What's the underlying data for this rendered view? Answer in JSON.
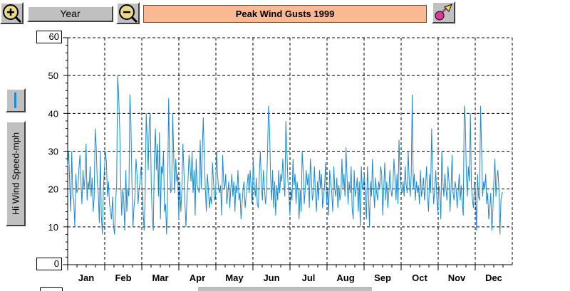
{
  "toolbar": {
    "zoom_in_icon": "zoom-in-magnifier-icon",
    "period_label": "Year",
    "zoom_out_icon": "zoom-out-magnifier-icon",
    "title": "Peak Wind Gusts 1999",
    "tool_icon": "paint-tool-icon"
  },
  "side": {
    "series_icon": "line-series-icon",
    "axis_button_label": "Hi Wind Speed-mph"
  },
  "colors": {
    "line": "#1a8ad6",
    "title_bg": "#f9b992",
    "button_face": "#c0c0c0"
  },
  "chart_data": {
    "type": "line",
    "title": "Peak Wind Gusts 1999",
    "ylabel": "Hi Wind Speed-mph",
    "ylim": [
      0,
      60
    ],
    "y_ticks": [
      "60",
      "50",
      "40",
      "30",
      "20",
      "10",
      "0"
    ],
    "y_max_box": "60",
    "y_min_box": "0",
    "grid": true,
    "months": [
      "Jan",
      "Feb",
      "Mar",
      "Apr",
      "May",
      "Jun",
      "Jul",
      "Aug",
      "Sep",
      "Oct",
      "Nov",
      "Dec"
    ],
    "series": [
      {
        "values": [
          26,
          30,
          21,
          14,
          30,
          18,
          17,
          10,
          24,
          19,
          20,
          25,
          29,
          22,
          16,
          25,
          20,
          23,
          32,
          17,
          22,
          20,
          26,
          18,
          23,
          14,
          18,
          36,
          31,
          22,
          19,
          11,
          30,
          13,
          8,
          20,
          25,
          30,
          27,
          18,
          22,
          16,
          14,
          12,
          18,
          10,
          8,
          17,
          21,
          50,
          45,
          36,
          22,
          13,
          20,
          17,
          9,
          25,
          14,
          20,
          18,
          45,
          38,
          22,
          10,
          15,
          18,
          28,
          24,
          16,
          20,
          22,
          26,
          20,
          14,
          9,
          18,
          40,
          33,
          25,
          38,
          40,
          21,
          12,
          9,
          28,
          36,
          25,
          32,
          18,
          35,
          12,
          26,
          24,
          30,
          14,
          16,
          8,
          18,
          44,
          27,
          19,
          20,
          40,
          29,
          19,
          28,
          22,
          24,
          12,
          22,
          14,
          20,
          32,
          25,
          16,
          10,
          18,
          22,
          29,
          26,
          22,
          30,
          19,
          25,
          13,
          28,
          21,
          20,
          19,
          33,
          20,
          30,
          39,
          28,
          20,
          14,
          24,
          20,
          15,
          18,
          16,
          27,
          22,
          17,
          18,
          30,
          24,
          20,
          19,
          21,
          13,
          29,
          22,
          20,
          24,
          16,
          19,
          22,
          15,
          20,
          24,
          18,
          22,
          14,
          21,
          19,
          25,
          17,
          19,
          12,
          16,
          20,
          22,
          15,
          18,
          21,
          24,
          19,
          25,
          20,
          16,
          28,
          21,
          18,
          23,
          16,
          15,
          24,
          30,
          21,
          17,
          25,
          20,
          16,
          19,
          30,
          42,
          36,
          23,
          17,
          25,
          15,
          22,
          13,
          21,
          17,
          25,
          19,
          24,
          22,
          28,
          22,
          18,
          38,
          30,
          22,
          19,
          13,
          20,
          17,
          28,
          21,
          24,
          16,
          22,
          19,
          12,
          20,
          14,
          30,
          25,
          16,
          20,
          25,
          21,
          24,
          15,
          28,
          23,
          17,
          19,
          26,
          19,
          14,
          22,
          17,
          25,
          20,
          24,
          15,
          18,
          21,
          27,
          16,
          20,
          13,
          25,
          22,
          19,
          14,
          26,
          20,
          18,
          23,
          15,
          21,
          17,
          19,
          28,
          20,
          24,
          18,
          31,
          23,
          16,
          22,
          19,
          26,
          15,
          12,
          25,
          18,
          20,
          23,
          14,
          22,
          10,
          26,
          20,
          21,
          24,
          17,
          12,
          26,
          19,
          10,
          22,
          18,
          28,
          20,
          15,
          23,
          19,
          17,
          22,
          20,
          26,
          24,
          13,
          20,
          27,
          17,
          22,
          15,
          19,
          25,
          20,
          18,
          21,
          28,
          23,
          17,
          24,
          16,
          33,
          24,
          20,
          19,
          22,
          18,
          26,
          21,
          19,
          30,
          22,
          18,
          24,
          45,
          20,
          24,
          17,
          22,
          19,
          21,
          16,
          25,
          18,
          20,
          23,
          17,
          21,
          26,
          18,
          14,
          24,
          19,
          36,
          22,
          16,
          20,
          25,
          18,
          14,
          21,
          19,
          12,
          30,
          22,
          18,
          24,
          20,
          17,
          26,
          22,
          14,
          20,
          29,
          19,
          17,
          22,
          20,
          15,
          19,
          24,
          17,
          21,
          16,
          13,
          42,
          38,
          24,
          18,
          26,
          22,
          40,
          21,
          17,
          15,
          22,
          20,
          9,
          24,
          18,
          17,
          42,
          30,
          18,
          22,
          20,
          24,
          16,
          19,
          12,
          15,
          19,
          9,
          14,
          22,
          28,
          18,
          23,
          25,
          20,
          8,
          17,
          19,
          19
        ]
      }
    ]
  }
}
